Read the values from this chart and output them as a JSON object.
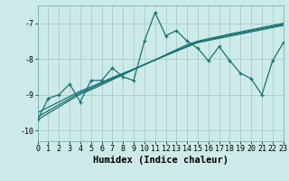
{
  "xlabel": "Humidex (Indice chaleur)",
  "ylabel": "",
  "background_color": "#cceae8",
  "grid_color": "#aacccc",
  "line_color": "#1a7070",
  "x_values": [
    0,
    1,
    2,
    3,
    4,
    5,
    6,
    7,
    8,
    9,
    10,
    11,
    12,
    13,
    14,
    15,
    16,
    17,
    18,
    19,
    20,
    21,
    22,
    23
  ],
  "y_main": [
    -9.7,
    -9.1,
    -9.0,
    -8.7,
    -9.2,
    -8.6,
    -8.6,
    -8.25,
    -8.5,
    -8.6,
    -7.5,
    -6.7,
    -7.35,
    -7.2,
    -7.5,
    -7.7,
    -8.05,
    -7.65,
    -8.05,
    -8.4,
    -8.55,
    -9.0,
    -8.05,
    -7.55
  ],
  "y_trend1": [
    -9.5,
    -9.35,
    -9.2,
    -9.05,
    -8.9,
    -8.78,
    -8.65,
    -8.52,
    -8.4,
    -8.28,
    -8.15,
    -8.03,
    -7.9,
    -7.78,
    -7.66,
    -7.54,
    -7.48,
    -7.42,
    -7.36,
    -7.3,
    -7.24,
    -7.18,
    -7.12,
    -7.06
  ],
  "y_trend2": [
    -9.7,
    -9.52,
    -9.34,
    -9.16,
    -8.98,
    -8.86,
    -8.72,
    -8.58,
    -8.44,
    -8.3,
    -8.16,
    -8.02,
    -7.88,
    -7.74,
    -7.6,
    -7.5,
    -7.43,
    -7.37,
    -7.3,
    -7.24,
    -7.18,
    -7.12,
    -7.06,
    -7.0
  ],
  "y_trend3": [
    -9.62,
    -9.45,
    -9.28,
    -9.11,
    -8.94,
    -8.82,
    -8.68,
    -8.55,
    -8.42,
    -8.29,
    -8.16,
    -8.03,
    -7.9,
    -7.77,
    -7.64,
    -7.52,
    -7.46,
    -7.39,
    -7.33,
    -7.27,
    -7.21,
    -7.15,
    -7.09,
    -7.03
  ],
  "ylim": [
    -10.3,
    -6.5
  ],
  "xlim": [
    0,
    23
  ],
  "yticks": [
    -10,
    -9,
    -8,
    -7
  ],
  "xticks": [
    0,
    1,
    2,
    3,
    4,
    5,
    6,
    7,
    8,
    9,
    10,
    11,
    12,
    13,
    14,
    15,
    16,
    17,
    18,
    19,
    20,
    21,
    22,
    23
  ],
  "tick_fontsize": 6,
  "label_fontsize": 7.5
}
